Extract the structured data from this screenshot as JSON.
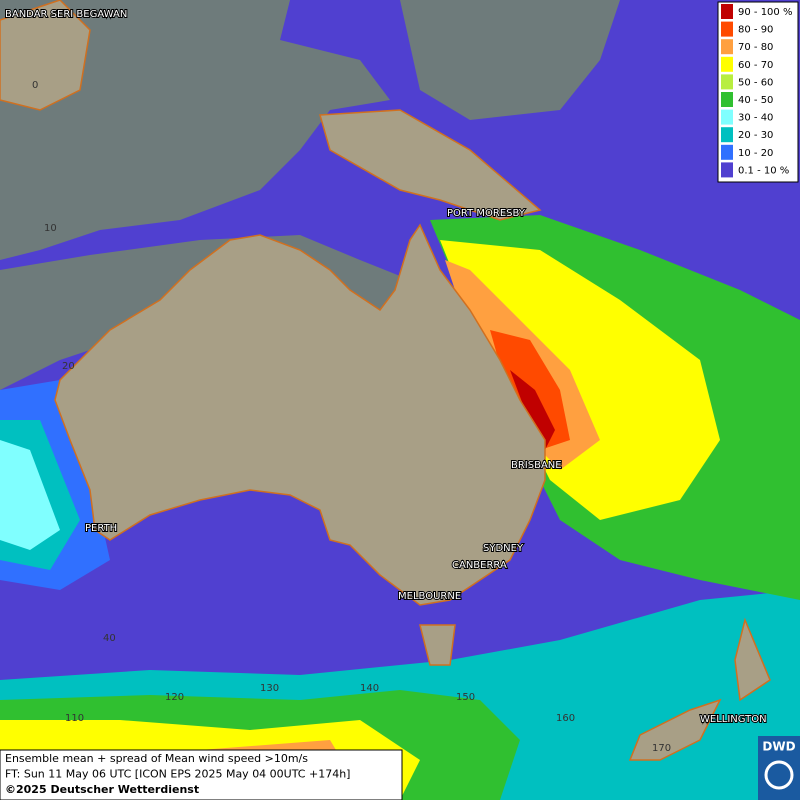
{
  "map": {
    "legend": [
      {
        "label": "90 - 100 %",
        "color": "#c00000"
      },
      {
        "label": "80 - 90",
        "color": "#ff4a00"
      },
      {
        "label": "70 - 80",
        "color": "#ffa040"
      },
      {
        "label": "60 - 70",
        "color": "#ffff00"
      },
      {
        "label": "50 - 60",
        "color": "#b8ee40"
      },
      {
        "label": "40 - 50",
        "color": "#30c030"
      },
      {
        "label": "30 - 40",
        "color": "#80ffff"
      },
      {
        "label": "20 - 30",
        "color": "#00c0c0"
      },
      {
        "label": "10 - 20",
        "color": "#3070ff"
      },
      {
        "label": "0.1 - 10 %",
        "color": "#5040d0"
      }
    ],
    "cities": [
      "BANDAR SERI BEGAWAN",
      "PORT MORESBY",
      "BRISBANE",
      "SYDNEY",
      "CANBERRA",
      "MELBOURNE",
      "PERTH",
      "WELLINGTON"
    ],
    "lat_labels": [
      0,
      10,
      20,
      40
    ],
    "lon_labels": [
      110,
      120,
      130,
      140,
      150,
      160,
      170
    ],
    "footer": [
      "Ensemble mean + spread of Mean wind speed >10m/s",
      "FT: Sun 11 May 06 UTC [ICON EPS 2025 May 04 00UTC +174h]",
      "©2025 Deutscher Wetterdienst"
    ],
    "logo": "DWD"
  }
}
